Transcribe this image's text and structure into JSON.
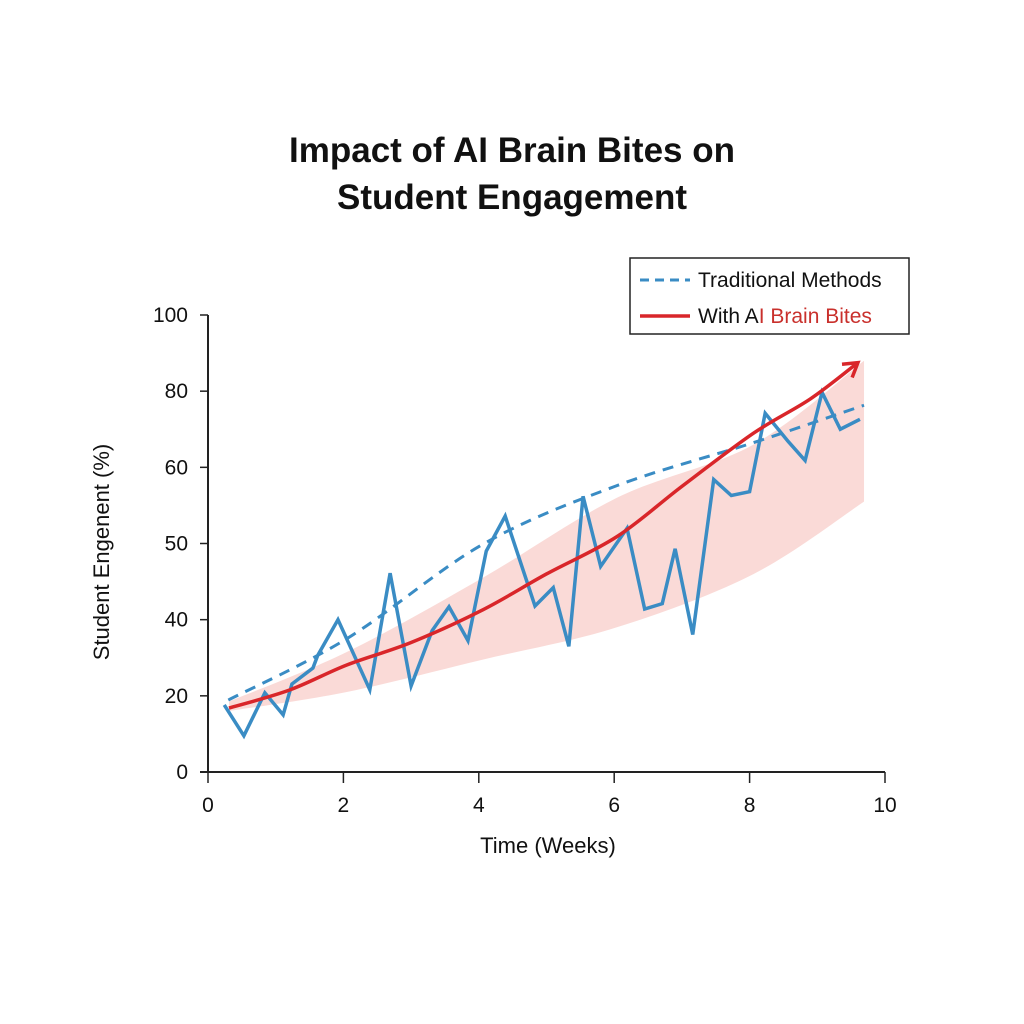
{
  "chart_data": {
    "type": "line",
    "title_lines": [
      "Impact of AI Brain Bites on",
      "Student Engagement"
    ],
    "xlabel": "Time (Weeks)",
    "ylabel": "Student Engenent (%)",
    "xlim": [
      0,
      10
    ],
    "x_ticks": [
      0,
      2,
      4,
      6,
      8,
      10
    ],
    "x_tick_labels": [
      "0",
      "2",
      "4",
      "6",
      "8",
      "10"
    ],
    "y_ticks": [
      0,
      20,
      40,
      50,
      60,
      80,
      100
    ],
    "y_tick_labels": [
      "0",
      "20",
      "40",
      "50",
      "60",
      "80",
      "100"
    ],
    "grid": false,
    "legend_position": "top-right",
    "legend": [
      {
        "key": "traditional",
        "prefix": "",
        "label": "Traditional Methods",
        "style": "dashed"
      },
      {
        "key": "ai",
        "prefix": "With A",
        "label": "I Brain Bites",
        "style": "solid-arrow"
      }
    ],
    "colors": {
      "traditional": "#3a8cc4",
      "ai": "#d9262a",
      "band": "#f9d3d0",
      "axis": "#222222",
      "text": "#111111",
      "legend_ai_text": "#c9302c"
    },
    "series": [
      {
        "name": "Traditional Methods (observed)",
        "style": "solid-jagged",
        "color_key": "traditional",
        "x": [
          0.24,
          0.53,
          0.84,
          1.11,
          1.24,
          1.55,
          1.62,
          1.92,
          2.39,
          2.69,
          3.0,
          3.31,
          3.56,
          3.84,
          4.11,
          4.39,
          4.83,
          5.1,
          5.33,
          5.54,
          5.8,
          6.19,
          6.45,
          6.71,
          6.9,
          7.16,
          7.47,
          7.73,
          8.0,
          8.23,
          8.57,
          8.82,
          9.07,
          9.34,
          9.63
        ],
        "y": [
          17.6,
          9.5,
          20.8,
          15.0,
          23.1,
          27.3,
          30.6,
          40.0,
          21.6,
          46.1,
          22.6,
          37.1,
          41.7,
          34.5,
          49.0,
          53.6,
          41.8,
          44.2,
          33.0,
          56.2,
          47.0,
          52.0,
          41.4,
          42.1,
          49.3,
          36.1,
          58.4,
          56.3,
          56.8,
          74.2,
          66.8,
          61.8,
          79.7,
          70.0,
          72.6
        ]
      },
      {
        "name": "Traditional Methods (trend)",
        "style": "dashed",
        "color_key": "traditional",
        "x": [
          0.3,
          2.05,
          4.06,
          6.04,
          8.06,
          9.69
        ],
        "y": [
          18.9,
          35.0,
          49.9,
          57.6,
          66.5,
          76.3
        ]
      },
      {
        "name": "With AI Brain Bites",
        "style": "solid-arrow",
        "color_key": "ai",
        "x": [
          0.31,
          1.2,
          2.05,
          3.0,
          4.06,
          5.0,
          6.04,
          7.0,
          8.06,
          8.9,
          9.6
        ],
        "y": [
          16.8,
          21.5,
          28.1,
          34.0,
          41.3,
          46.0,
          50.9,
          57.5,
          69.0,
          78.0,
          87.5
        ]
      },
      {
        "name": "With AI Brain Bites (range)",
        "style": "band",
        "color_key": "band",
        "x": [
          0.31,
          2.05,
          4.06,
          6.04,
          8.06,
          9.69
        ],
        "upper": [
          18.5,
          31.5,
          45.5,
          56.0,
          66.0,
          88.0
        ],
        "lower": [
          16.0,
          21.0,
          29.5,
          38.0,
          46.0,
          55.5
        ]
      }
    ]
  }
}
